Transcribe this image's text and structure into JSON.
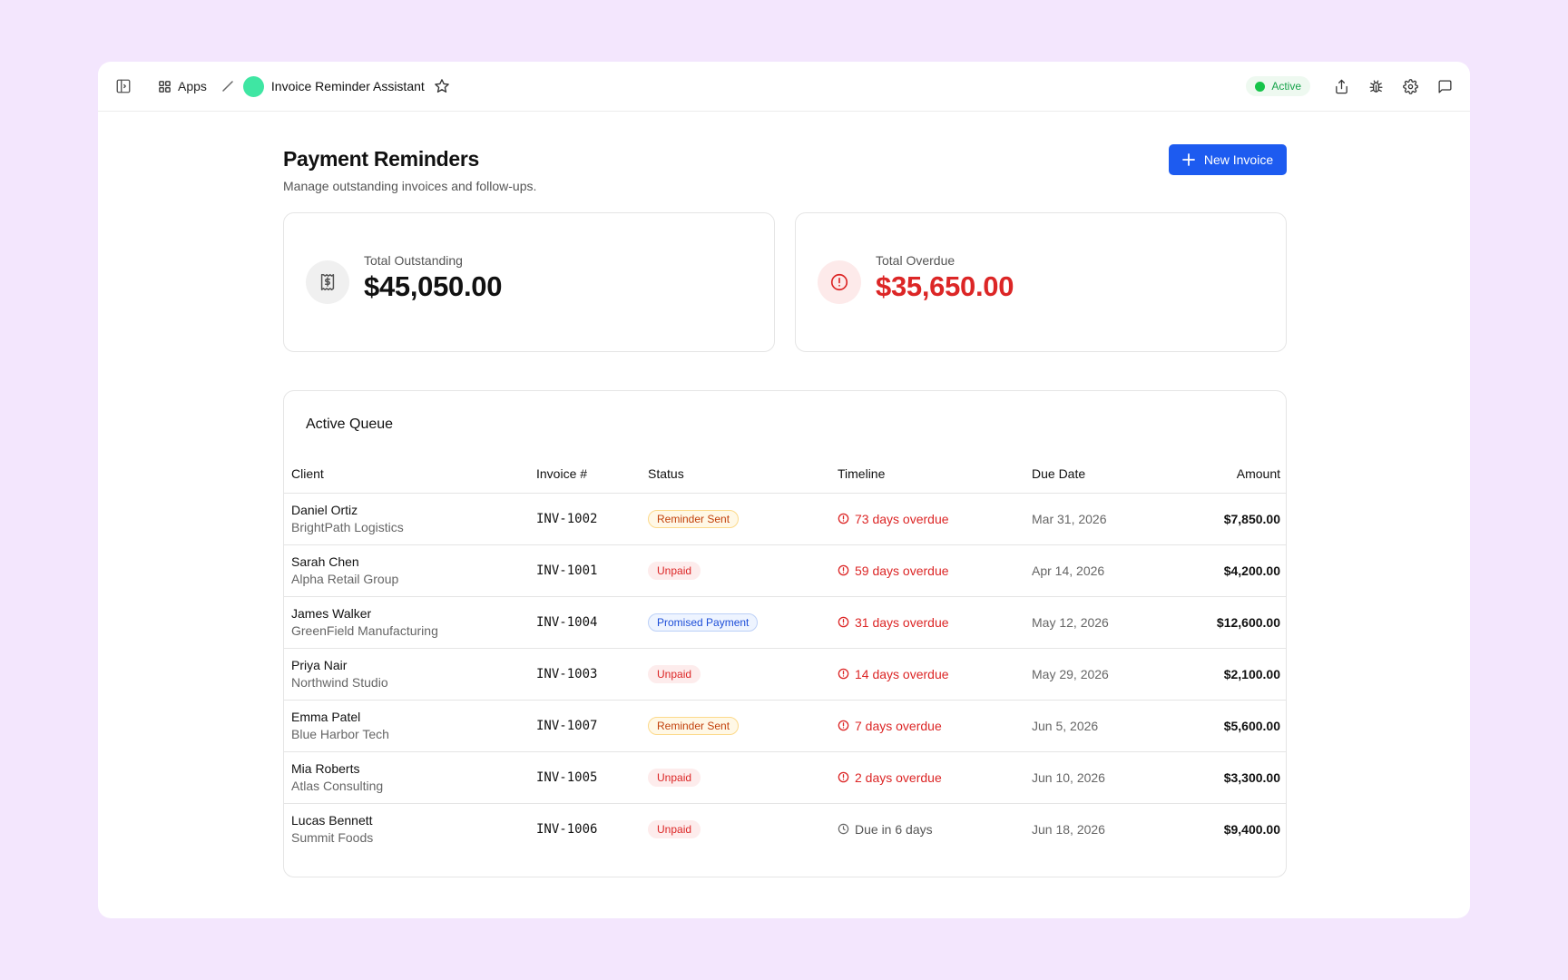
{
  "header": {
    "apps_label": "Apps",
    "app_name": "Invoice Reminder Assistant",
    "status_label": "Active",
    "colors": {
      "app_dot": "#3fe6a3",
      "status": "#16a34a"
    }
  },
  "page": {
    "title": "Payment Reminders",
    "subtitle": "Manage outstanding invoices and follow-ups.",
    "new_button_label": "New Invoice"
  },
  "stats": {
    "outstanding": {
      "label": "Total Outstanding",
      "value": "$45,050.00",
      "icon": "dollar-receipt-icon"
    },
    "overdue": {
      "label": "Total Overdue",
      "value": "$35,650.00",
      "icon": "alert-circle-icon",
      "color": "#dc2626"
    }
  },
  "queue": {
    "title": "Active Queue",
    "columns": [
      "Client",
      "Invoice #",
      "Status",
      "Timeline",
      "Due Date",
      "Amount"
    ],
    "rows": [
      {
        "client": "Daniel Ortiz",
        "company": "BrightPath Logistics",
        "invoice": "INV-1002",
        "status": "Reminder Sent",
        "status_type": "reminder",
        "timeline": "73 days overdue",
        "timeline_type": "overdue",
        "due": "Mar 31, 2026",
        "amount": "$7,850.00"
      },
      {
        "client": "Sarah Chen",
        "company": "Alpha Retail Group",
        "invoice": "INV-1001",
        "status": "Unpaid",
        "status_type": "unpaid",
        "timeline": "59 days overdue",
        "timeline_type": "overdue",
        "due": "Apr 14, 2026",
        "amount": "$4,200.00"
      },
      {
        "client": "James Walker",
        "company": "GreenField Manufacturing",
        "invoice": "INV-1004",
        "status": "Promised Payment",
        "status_type": "promised",
        "timeline": "31 days overdue",
        "timeline_type": "overdue",
        "due": "May 12, 2026",
        "amount": "$12,600.00"
      },
      {
        "client": "Priya Nair",
        "company": "Northwind Studio",
        "invoice": "INV-1003",
        "status": "Unpaid",
        "status_type": "unpaid",
        "timeline": "14 days overdue",
        "timeline_type": "overdue",
        "due": "May 29, 2026",
        "amount": "$2,100.00"
      },
      {
        "client": "Emma Patel",
        "company": "Blue Harbor Tech",
        "invoice": "INV-1007",
        "status": "Reminder Sent",
        "status_type": "reminder",
        "timeline": "7 days overdue",
        "timeline_type": "overdue",
        "due": "Jun 5, 2026",
        "amount": "$5,600.00"
      },
      {
        "client": "Mia Roberts",
        "company": "Atlas Consulting",
        "invoice": "INV-1005",
        "status": "Unpaid",
        "status_type": "unpaid",
        "timeline": "2 days overdue",
        "timeline_type": "overdue",
        "due": "Jun 10, 2026",
        "amount": "$3,300.00"
      },
      {
        "client": "Lucas Bennett",
        "company": "Summit Foods",
        "invoice": "INV-1006",
        "status": "Unpaid",
        "status_type": "unpaid",
        "timeline": "Due in 6 days",
        "timeline_type": "upcoming",
        "due": "Jun 18, 2026",
        "amount": "$9,400.00"
      }
    ]
  }
}
